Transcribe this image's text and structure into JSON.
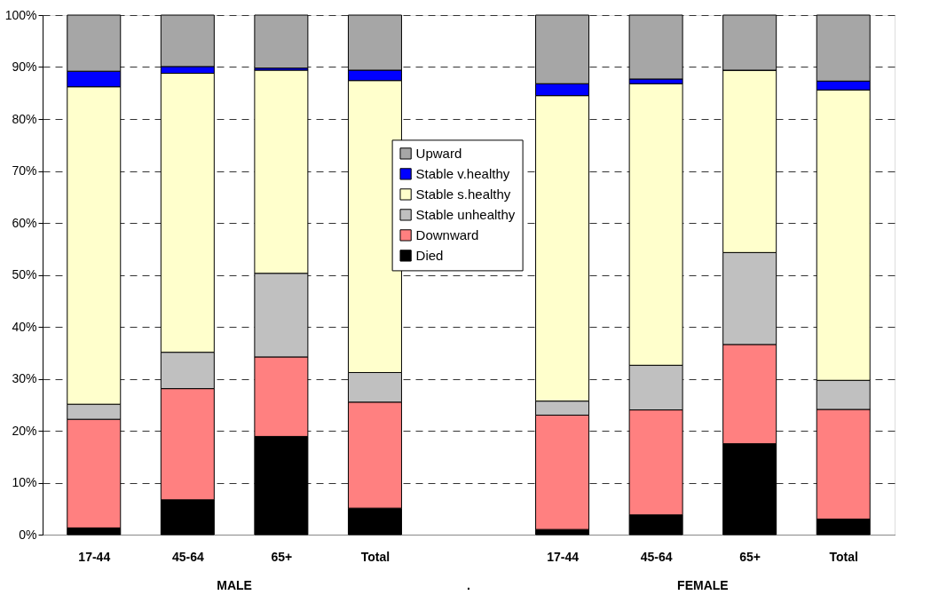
{
  "chart_data": {
    "type": "bar",
    "stacked": true,
    "categories": [
      "17-44",
      "45-64",
      "65+",
      "Total",
      null,
      "17-44",
      "45-64",
      "65+",
      "Total"
    ],
    "series": [
      {
        "name": "Died",
        "color": "#000000",
        "values": [
          1.3,
          6.7,
          18.9,
          5.1,
          null,
          1.0,
          3.8,
          17.5,
          3.0
        ]
      },
      {
        "name": "Downward",
        "color": "#ff8080",
        "values": [
          20.9,
          21.4,
          15.3,
          20.4,
          null,
          22.0,
          20.2,
          19.1,
          21.1
        ]
      },
      {
        "name": "Stable unhealthy",
        "color": "#c0c0c0",
        "values": [
          2.9,
          7.0,
          16.1,
          5.7,
          null,
          2.7,
          8.6,
          17.7,
          5.6
        ]
      },
      {
        "name": "Stable s.healthy",
        "color": "#ffffcc",
        "values": [
          61.1,
          53.7,
          39.1,
          56.2,
          null,
          58.8,
          54.2,
          35.1,
          55.9
        ]
      },
      {
        "name": "Stable v.healthy",
        "color": "#0000ff",
        "values": [
          3.0,
          1.3,
          0.4,
          2.0,
          null,
          2.3,
          0.9,
          0,
          1.7
        ]
      },
      {
        "name": "Upward",
        "color": "#a6a6a6",
        "values": [
          10.8,
          9.9,
          10.2,
          10.6,
          null,
          13.2,
          12.3,
          10.6,
          12.7
        ]
      }
    ],
    "ylim": [
      0,
      100
    ],
    "yticks": [
      {
        "value": 0,
        "label": "0%"
      },
      {
        "value": 10,
        "label": "10%"
      },
      {
        "value": 20,
        "label": "20%"
      },
      {
        "value": 30,
        "label": "30%"
      },
      {
        "value": 40,
        "label": "40%"
      },
      {
        "value": 50,
        "label": "50%"
      },
      {
        "value": 60,
        "label": "60%"
      },
      {
        "value": 70,
        "label": "70%"
      },
      {
        "value": 80,
        "label": "80%"
      },
      {
        "value": 90,
        "label": "90%"
      },
      {
        "value": 100,
        "label": "100%"
      }
    ],
    "grid": "y",
    "legend": "center",
    "annotations": [
      "MALE",
      ".",
      "FEMALE"
    ]
  }
}
